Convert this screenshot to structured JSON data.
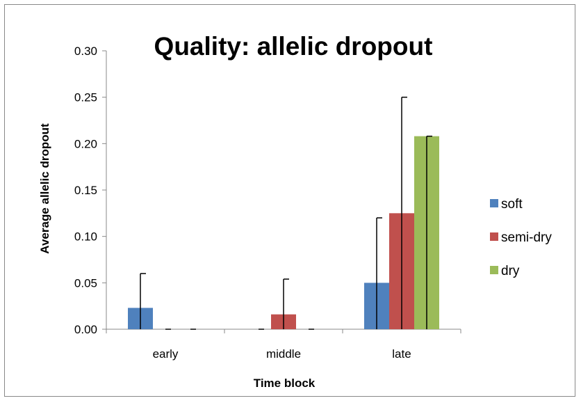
{
  "chart_data": {
    "type": "bar",
    "title": "Quality: allelic dropout",
    "xlabel": "Time block",
    "ylabel": "Average allelic dropout",
    "categories": [
      "early",
      "middle",
      "late"
    ],
    "ylim": [
      0,
      0.3
    ],
    "yticks": [
      "0.00",
      "0.05",
      "0.10",
      "0.15",
      "0.20",
      "0.25",
      "0.30"
    ],
    "grid": false,
    "legend_position": "right",
    "series": [
      {
        "name": "soft",
        "color": "#4F81BD",
        "values": [
          0.023,
          0.0,
          0.05
        ],
        "errors": [
          0.037,
          0.0,
          0.07
        ]
      },
      {
        "name": "semi-dry",
        "color": "#C0504D",
        "values": [
          0.0,
          0.016,
          0.125
        ],
        "errors": [
          0.0,
          0.038,
          0.125
        ]
      },
      {
        "name": "dry",
        "color": "#9BBB59",
        "values": [
          0.0,
          0.0,
          0.208
        ],
        "errors": [
          0.0,
          0.0,
          0.0
        ]
      }
    ]
  }
}
